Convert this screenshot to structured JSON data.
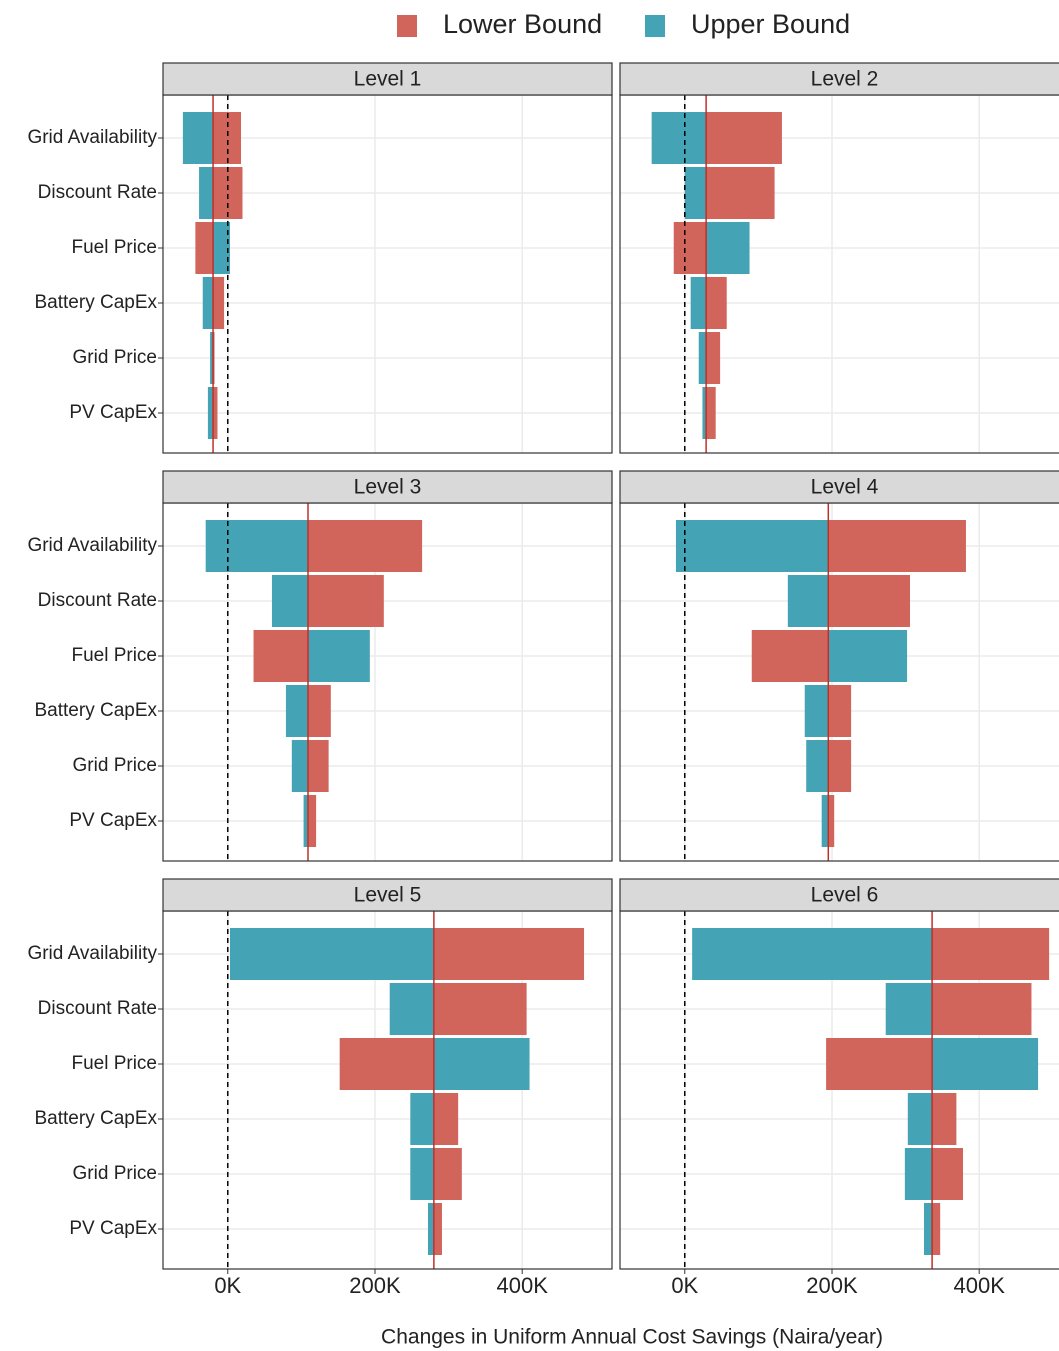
{
  "chart_data": {
    "type": "tornado",
    "xlabel": "Changes in Uniform Annual Cost Savings (Naira/year)",
    "categories": [
      "Grid Availability",
      "Discount Rate",
      "Fuel Price",
      "Battery CapEx",
      "Grid Price",
      "PV CapEx"
    ],
    "series": [
      {
        "name": "Lower Bound",
        "color": "#d1655c"
      },
      {
        "name": "Upper Bound",
        "color": "#44a3b5"
      }
    ],
    "xlim": [
      -88000,
      522000
    ],
    "xticks": [
      {
        "value": 0,
        "label": "0K"
      },
      {
        "value": 200000,
        "label": "200K"
      },
      {
        "value": 400000,
        "label": "400K"
      }
    ],
    "reference_line": 0,
    "grid": true,
    "legend": "top",
    "facets": [
      {
        "title": "Level 1",
        "baseline": -20000,
        "series": [
          {
            "values": [
              18000,
              20000,
              -44000,
              -5000,
              -18000,
              -14000
            ]
          },
          {
            "values": [
              -61000,
              -39000,
              3000,
              -34000,
              -24000,
              -27000
            ]
          }
        ]
      },
      {
        "title": "Level 2",
        "baseline": 29000,
        "series": [
          {
            "values": [
              132000,
              122000,
              -15000,
              57000,
              48000,
              42000
            ]
          },
          {
            "values": [
              -45000,
              0,
              88000,
              8000,
              19000,
              24000
            ]
          }
        ]
      },
      {
        "title": "Level 3",
        "baseline": 109000,
        "series": [
          {
            "values": [
              264000,
              212000,
              35000,
              140000,
              137000,
              120000
            ]
          },
          {
            "values": [
              -30000,
              60000,
              193000,
              79000,
              87000,
              103000
            ]
          }
        ]
      },
      {
        "title": "Level 4",
        "baseline": 195000,
        "series": [
          {
            "values": [
              382000,
              306000,
              91000,
              226000,
              226000,
              203000
            ]
          },
          {
            "values": [
              -12000,
              140000,
              302000,
              163000,
              165000,
              186000
            ]
          }
        ]
      },
      {
        "title": "Level 5",
        "baseline": 280000,
        "series": [
          {
            "values": [
              484000,
              406000,
              152000,
              313000,
              318000,
              291000
            ]
          },
          {
            "values": [
              3000,
              220000,
              410000,
              248000,
              248000,
              272000
            ]
          }
        ]
      },
      {
        "title": "Level 6",
        "baseline": 336000,
        "series": [
          {
            "values": [
              495000,
              471000,
              192000,
              369000,
              378000,
              347000
            ]
          },
          {
            "values": [
              10000,
              273000,
              480000,
              303000,
              299000,
              325000
            ]
          }
        ]
      }
    ]
  }
}
